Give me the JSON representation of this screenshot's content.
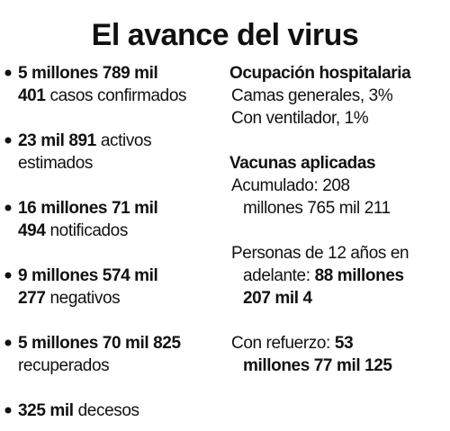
{
  "title": "El avance del virus",
  "left": [
    {
      "lines": [
        [
          {
            "b": "5 millones 789 mil"
          }
        ],
        [
          {
            "b": "401"
          },
          {
            "t": "casos confirmados"
          }
        ]
      ]
    },
    {
      "lines": [
        [
          {
            "b": "23 mil 891"
          },
          {
            "t": "activos"
          }
        ],
        [
          {
            "t": "estimados"
          }
        ]
      ]
    },
    {
      "lines": [
        [
          {
            "b": "16 millones 71 mil"
          }
        ],
        [
          {
            "b": "494"
          },
          {
            "t": "notificados"
          }
        ]
      ]
    },
    {
      "lines": [
        [
          {
            "b": "9 millones 574 mil"
          }
        ],
        [
          {
            "b": "277"
          },
          {
            "t": "negativos"
          }
        ]
      ]
    },
    {
      "lines": [
        [
          {
            "b": "5 millones 70 mil 825"
          }
        ],
        [
          {
            "t": "recuperados"
          }
        ]
      ]
    },
    {
      "lines": [
        [
          {
            "b": "325 mil"
          },
          {
            "t": "decesos"
          }
        ]
      ]
    }
  ],
  "right": [
    {
      "heading": "Ocupación hospitalaria",
      "items": [
        [
          [
            {
              "t": "Camas generales, 3%"
            }
          ]
        ],
        [
          [
            {
              "t": "Con ventilador, 1%"
            }
          ]
        ]
      ]
    },
    {
      "heading": "Vacunas aplicadas",
      "items": [
        [
          [
            {
              "t": "Acumulado: 208"
            }
          ],
          [
            {
              "t": "millones 765 mil 211"
            }
          ]
        ]
      ]
    },
    {
      "items": [
        [
          [
            {
              "t": "Personas de 12 años en"
            }
          ],
          [
            {
              "t": "adelante:"
            },
            {
              "b": "88 millones"
            }
          ],
          [
            {
              "b": "207 mil 4"
            }
          ]
        ]
      ]
    },
    {
      "items": [
        [
          [
            {
              "t": "Con refuerzo:"
            },
            {
              "b": "53"
            }
          ],
          [
            {
              "b": "millones 77 mil 125"
            }
          ]
        ]
      ]
    }
  ]
}
